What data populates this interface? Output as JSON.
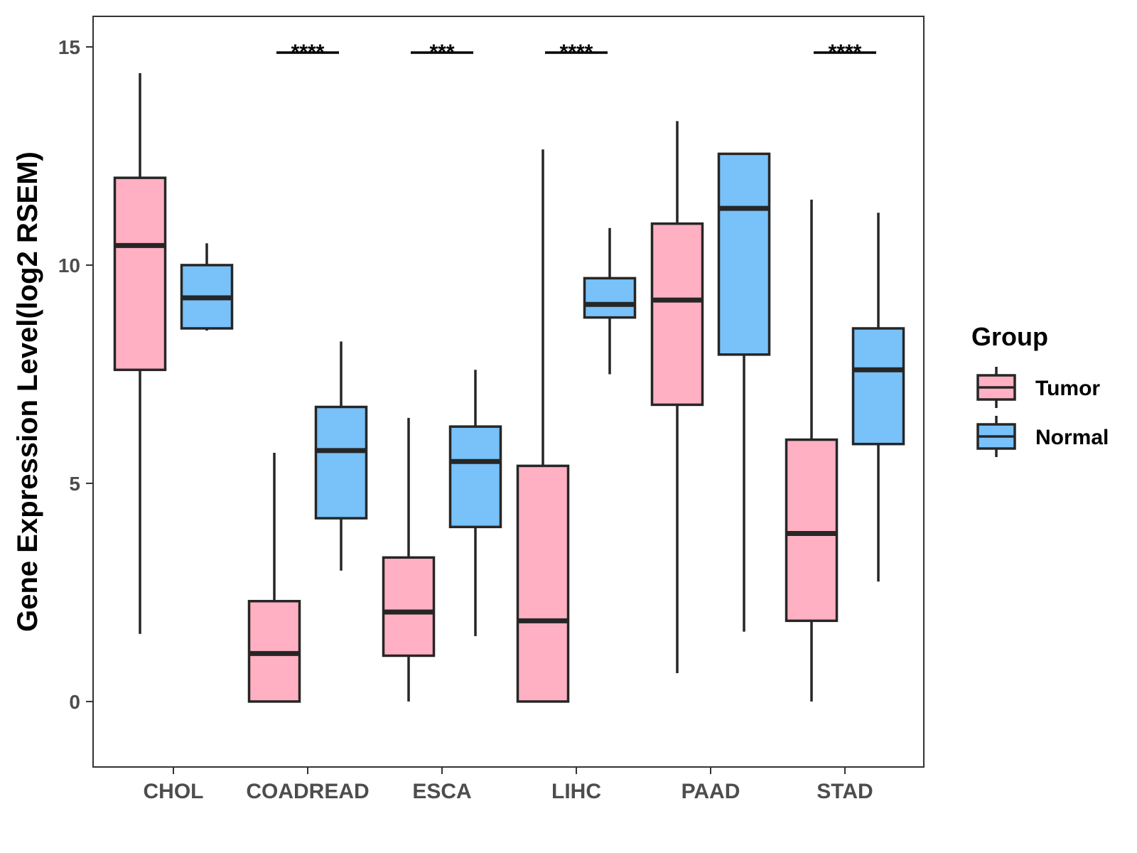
{
  "chart_data": {
    "type": "box",
    "title": "",
    "xlabel": "",
    "ylabel": "Gene Expression Level(log2 RSEM)",
    "ylim": [
      -1.5,
      15.7
    ],
    "yticks": [
      0,
      5,
      10,
      15
    ],
    "grid": false,
    "legend": {
      "title": "Group",
      "placement": "right"
    },
    "categories": [
      "CHOL",
      "COADREAD",
      "ESCA",
      "LIHC",
      "PAAD",
      "STAD"
    ],
    "series": [
      {
        "name": "Tumor",
        "color": "#FFB0C2",
        "boxes": [
          {
            "category": "CHOL",
            "lower_whisker": 1.55,
            "q1": 7.6,
            "median": 10.45,
            "q3": 12.0,
            "upper_whisker": 14.4
          },
          {
            "category": "COADREAD",
            "lower_whisker": 0.0,
            "q1": 0.0,
            "median": 1.1,
            "q3": 2.3,
            "upper_whisker": 5.7
          },
          {
            "category": "ESCA",
            "lower_whisker": 0.0,
            "q1": 1.05,
            "median": 2.05,
            "q3": 3.3,
            "upper_whisker": 6.5
          },
          {
            "category": "LIHC",
            "lower_whisker": 0.0,
            "q1": 0.0,
            "median": 1.85,
            "q3": 5.4,
            "upper_whisker": 12.65
          },
          {
            "category": "PAAD",
            "lower_whisker": 0.65,
            "q1": 6.8,
            "median": 9.2,
            "q3": 10.95,
            "upper_whisker": 13.3
          },
          {
            "category": "STAD",
            "lower_whisker": 0.0,
            "q1": 1.85,
            "median": 3.85,
            "q3": 6.0,
            "upper_whisker": 11.5
          }
        ]
      },
      {
        "name": "Normal",
        "color": "#78C1F9",
        "boxes": [
          {
            "category": "CHOL",
            "lower_whisker": 8.5,
            "q1": 8.55,
            "median": 9.25,
            "q3": 10.0,
            "upper_whisker": 10.5
          },
          {
            "category": "COADREAD",
            "lower_whisker": 3.0,
            "q1": 4.2,
            "median": 5.75,
            "q3": 6.75,
            "upper_whisker": 8.25
          },
          {
            "category": "ESCA",
            "lower_whisker": 1.5,
            "q1": 4.0,
            "median": 5.5,
            "q3": 6.3,
            "upper_whisker": 7.6
          },
          {
            "category": "LIHC",
            "lower_whisker": 7.5,
            "q1": 8.8,
            "median": 9.1,
            "q3": 9.7,
            "upper_whisker": 10.85
          },
          {
            "category": "PAAD",
            "lower_whisker": 1.6,
            "q1": 7.95,
            "median": 11.3,
            "q3": 12.55,
            "upper_whisker": 12.55
          },
          {
            "category": "STAD",
            "lower_whisker": 2.75,
            "q1": 5.9,
            "median": 7.6,
            "q3": 8.55,
            "upper_whisker": 11.2
          }
        ]
      }
    ],
    "significance": [
      {
        "category": "COADREAD",
        "label": "****"
      },
      {
        "category": "ESCA",
        "label": "***"
      },
      {
        "category": "LIHC",
        "label": "****"
      },
      {
        "category": "STAD",
        "label": "****"
      }
    ]
  }
}
